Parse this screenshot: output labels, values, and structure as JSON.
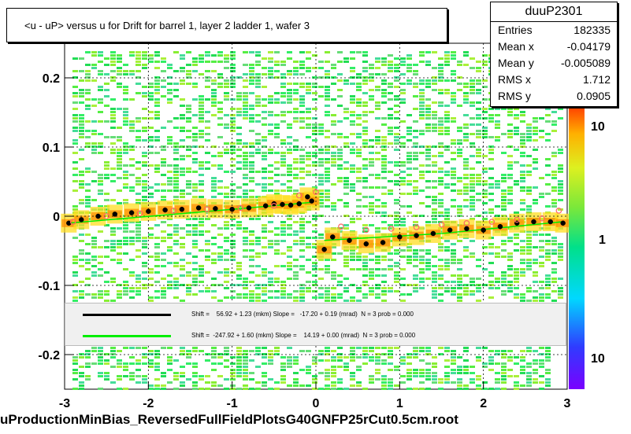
{
  "title": "<u - uP>       versus   u for Drift for barrel 1, layer 2 ladder 1, wafer 3",
  "footer": "uProductionMinBias_ReversedFullFieldPlotsG40GNFP25rCut0.5cm.root",
  "stats": {
    "name": "duuP2301",
    "rows": [
      {
        "label": "Entries",
        "value": "182335"
      },
      {
        "label": "Mean x",
        "value": "-0.04179"
      },
      {
        "label": "Mean y",
        "value": "-0.005089"
      },
      {
        "label": "RMS x",
        "value": "1.712"
      },
      {
        "label": "RMS y",
        "value": "0.0905"
      }
    ]
  },
  "legend": [
    {
      "text": "Shift =    56.92 + 1.23 (mkm) Slope =   -17.20 + 0.19 (mrad)  N = 3 prob = 0.000",
      "color": "#000000"
    },
    {
      "text": "Shift =  -247.92 + 1.60 (mkm) Slope =    14.19 + 0.00 (mrad)  N = 3 prob = 0.000",
      "color": "#00ee00"
    }
  ],
  "colors": {
    "black_fit": "#000000",
    "green_fit": "#00ee00",
    "open_markers": "#ff6666"
  },
  "chart_data": {
    "type": "heatmap",
    "title": "<u - uP>       versus   u for Drift for barrel 1, layer 2 ladder 1, wafer 3",
    "xlim": [
      -3,
      3
    ],
    "ylim": [
      -0.25,
      0.25
    ],
    "x_ticks": [
      -3,
      -2,
      -1,
      0,
      1,
      2,
      3
    ],
    "y_ticks": [
      -0.2,
      -0.1,
      0,
      0.1,
      0.2
    ],
    "x_tick_labels": [
      "-3",
      "-2",
      "-1",
      "0",
      "1",
      "2",
      "3"
    ],
    "y_tick_labels": [
      "-0.2",
      "-0.1",
      "0",
      "0.1",
      "0.2"
    ],
    "z_scale": "log",
    "z_tick_labels": [
      "10",
      "1",
      "10"
    ],
    "grid": true,
    "series": [
      {
        "marker": "filled-circle",
        "color": "#000000",
        "x": [
          -2.95,
          -2.8,
          -2.6,
          -2.4,
          -2.2,
          -2.0,
          -1.8,
          -1.6,
          -1.4,
          -1.2,
          -1.0,
          -0.8,
          -0.6,
          -0.5,
          -0.4,
          -0.3,
          -0.2,
          -0.1,
          -0.05,
          0.1,
          0.2,
          0.4,
          0.6,
          0.8,
          1.0,
          1.2,
          1.4,
          1.6,
          1.8,
          2.0,
          2.2,
          2.4,
          2.6,
          2.8,
          2.95
        ],
        "y": [
          -0.01,
          -0.005,
          0.0,
          0.003,
          0.005,
          0.007,
          0.009,
          0.01,
          0.012,
          0.011,
          0.01,
          0.012,
          0.015,
          0.018,
          0.017,
          0.016,
          0.018,
          0.028,
          0.022,
          -0.048,
          -0.03,
          -0.035,
          -0.04,
          -0.038,
          -0.03,
          -0.028,
          -0.025,
          -0.02,
          -0.018,
          -0.02,
          -0.015,
          -0.01,
          -0.008,
          -0.008,
          -0.01
        ]
      },
      {
        "marker": "open-circle",
        "color": "#ff6666",
        "x": [
          -2.9,
          -2.5,
          -2.1,
          -1.7,
          -1.3,
          -0.9,
          -0.5,
          -0.2,
          0.0,
          0.3,
          0.6,
          0.9,
          1.2,
          1.5,
          1.8,
          2.1,
          2.4,
          2.7,
          2.9
        ],
        "y": [
          -0.008,
          0.0,
          0.004,
          0.008,
          0.01,
          0.012,
          0.015,
          0.03,
          0.035,
          -0.015,
          -0.02,
          -0.018,
          -0.016,
          -0.012,
          -0.01,
          -0.008,
          -0.005,
          -0.003,
          0.008
        ]
      }
    ]
  }
}
